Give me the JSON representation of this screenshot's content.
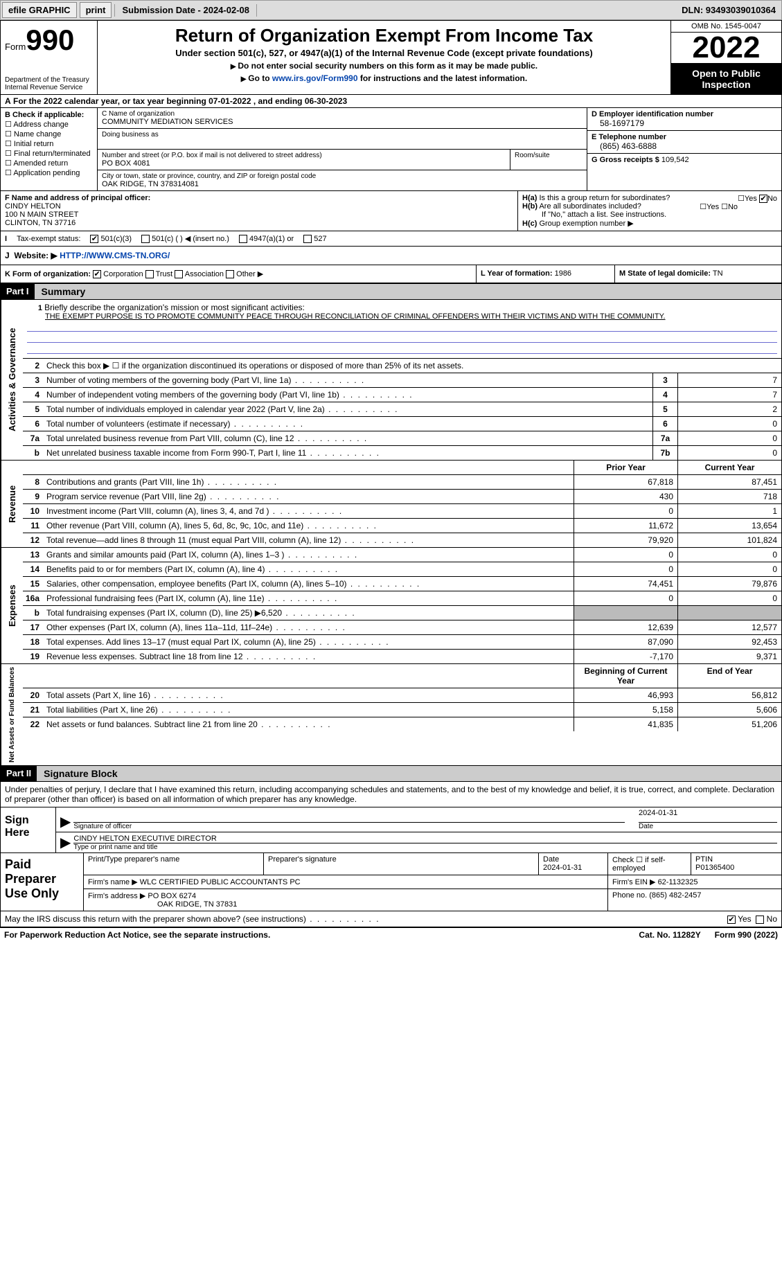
{
  "toolbar": {
    "efile": "efile GRAPHIC",
    "print": "print",
    "submission": "Submission Date - 2024-02-08",
    "dln": "DLN: 93493039010364"
  },
  "header": {
    "form_prefix": "Form",
    "form_number": "990",
    "dept": "Department of the Treasury\nInternal Revenue Service",
    "title": "Return of Organization Exempt From Income Tax",
    "subtitle": "Under section 501(c), 527, or 4947(a)(1) of the Internal Revenue Code (except private foundations)",
    "note1": "Do not enter social security numbers on this form as it may be made public.",
    "note2_pre": "Go to ",
    "note2_link": "www.irs.gov/Form990",
    "note2_post": " for instructions and the latest information.",
    "omb": "OMB No. 1545-0047",
    "year": "2022",
    "inspect": "Open to Public Inspection"
  },
  "calendar": "For the 2022 calendar year, or tax year beginning 07-01-2022   , and ending 06-30-2023",
  "sectionB": {
    "label": "B Check if applicable:",
    "items": [
      "Address change",
      "Name change",
      "Initial return",
      "Final return/terminated",
      "Amended return",
      "Application pending"
    ]
  },
  "sectionC": {
    "name_label": "C Name of organization",
    "name": "COMMUNITY MEDIATION SERVICES",
    "dba_label": "Doing business as",
    "addr_label": "Number and street (or P.O. box if mail is not delivered to street address)",
    "room_label": "Room/suite",
    "addr": "PO BOX 4081",
    "city_label": "City or town, state or province, country, and ZIP or foreign postal code",
    "city": "OAK RIDGE, TN  378314081"
  },
  "sectionD": {
    "label": "D Employer identification number",
    "val": "58-1697179"
  },
  "sectionE": {
    "label": "E Telephone number",
    "val": "(865) 463-6888"
  },
  "sectionG": {
    "label": "G Gross receipts $",
    "val": "109,542"
  },
  "sectionF": {
    "label": "F Name and address of principal officer:",
    "name": "CINDY HELTON",
    "addr1": "100 N MAIN STREET",
    "addr2": "CLINTON, TN  37716"
  },
  "sectionH": {
    "a": "Is this a group return for subordinates?",
    "b": "Are all subordinates included?",
    "note": "If \"No,\" attach a list. See instructions.",
    "c": "Group exemption number ▶"
  },
  "taxexempt": {
    "label": "Tax-exempt status:",
    "c3": "501(c)(3)",
    "c": "501(c) (  ) ◀ (insert no.)",
    "a1": "4947(a)(1) or",
    "s527": "527"
  },
  "sectionJ": {
    "label": "Website: ▶",
    "val": "HTTP://WWW.CMS-TN.ORG/"
  },
  "sectionK": {
    "label": "K Form of organization:",
    "opts": [
      "Corporation",
      "Trust",
      "Association",
      "Other ▶"
    ]
  },
  "sectionL": {
    "label": "L Year of formation:",
    "val": "1986"
  },
  "sectionM": {
    "label": "M State of legal domicile:",
    "val": "TN"
  },
  "part1": {
    "hdr": "Part I",
    "title": "Summary",
    "sideA": "Activities & Governance",
    "sideR": "Revenue",
    "sideE": "Expenses",
    "sideN": "Net Assets or Fund Balances",
    "l1_label": "Briefly describe the organization's mission or most significant activities:",
    "l1_val": "THE EXEMPT PURPOSE IS TO PROMOTE COMMUNITY PEACE THROUGH RECONCILIATION OF CRIMINAL OFFENDERS WITH THEIR VICTIMS AND WITH THE COMMUNITY.",
    "l2": "Check this box ▶ ☐ if the organization discontinued its operations or disposed of more than 25% of its net assets.",
    "lines_ag": [
      {
        "n": "3",
        "t": "Number of voting members of the governing body (Part VI, line 1a)",
        "b": "3",
        "v": "7"
      },
      {
        "n": "4",
        "t": "Number of independent voting members of the governing body (Part VI, line 1b)",
        "b": "4",
        "v": "7"
      },
      {
        "n": "5",
        "t": "Total number of individuals employed in calendar year 2022 (Part V, line 2a)",
        "b": "5",
        "v": "2"
      },
      {
        "n": "6",
        "t": "Total number of volunteers (estimate if necessary)",
        "b": "6",
        "v": "0"
      },
      {
        "n": "7a",
        "t": "Total unrelated business revenue from Part VIII, column (C), line 12",
        "b": "7a",
        "v": "0"
      },
      {
        "n": "b",
        "t": "Net unrelated business taxable income from Form 990-T, Part I, line 11",
        "b": "7b",
        "v": "0"
      }
    ],
    "col_prior": "Prior Year",
    "col_current": "Current Year",
    "lines_rev": [
      {
        "n": "8",
        "t": "Contributions and grants (Part VIII, line 1h)",
        "p": "67,818",
        "c": "87,451"
      },
      {
        "n": "9",
        "t": "Program service revenue (Part VIII, line 2g)",
        "p": "430",
        "c": "718"
      },
      {
        "n": "10",
        "t": "Investment income (Part VIII, column (A), lines 3, 4, and 7d )",
        "p": "0",
        "c": "1"
      },
      {
        "n": "11",
        "t": "Other revenue (Part VIII, column (A), lines 5, 6d, 8c, 9c, 10c, and 11e)",
        "p": "11,672",
        "c": "13,654"
      },
      {
        "n": "12",
        "t": "Total revenue—add lines 8 through 11 (must equal Part VIII, column (A), line 12)",
        "p": "79,920",
        "c": "101,824"
      }
    ],
    "lines_exp": [
      {
        "n": "13",
        "t": "Grants and similar amounts paid (Part IX, column (A), lines 1–3 )",
        "p": "0",
        "c": "0"
      },
      {
        "n": "14",
        "t": "Benefits paid to or for members (Part IX, column (A), line 4)",
        "p": "0",
        "c": "0"
      },
      {
        "n": "15",
        "t": "Salaries, other compensation, employee benefits (Part IX, column (A), lines 5–10)",
        "p": "74,451",
        "c": "79,876"
      },
      {
        "n": "16a",
        "t": "Professional fundraising fees (Part IX, column (A), line 11e)",
        "p": "0",
        "c": "0"
      },
      {
        "n": "b",
        "t": "Total fundraising expenses (Part IX, column (D), line 25) ▶6,520",
        "p": "",
        "c": "",
        "shade": true
      },
      {
        "n": "17",
        "t": "Other expenses (Part IX, column (A), lines 11a–11d, 11f–24e)",
        "p": "12,639",
        "c": "12,577"
      },
      {
        "n": "18",
        "t": "Total expenses. Add lines 13–17 (must equal Part IX, column (A), line 25)",
        "p": "87,090",
        "c": "92,453"
      },
      {
        "n": "19",
        "t": "Revenue less expenses. Subtract line 18 from line 12",
        "p": "-7,170",
        "c": "9,371"
      }
    ],
    "col_beg": "Beginning of Current Year",
    "col_end": "End of Year",
    "lines_net": [
      {
        "n": "20",
        "t": "Total assets (Part X, line 16)",
        "p": "46,993",
        "c": "56,812"
      },
      {
        "n": "21",
        "t": "Total liabilities (Part X, line 26)",
        "p": "5,158",
        "c": "5,606"
      },
      {
        "n": "22",
        "t": "Net assets or fund balances. Subtract line 21 from line 20",
        "p": "41,835",
        "c": "51,206"
      }
    ]
  },
  "part2": {
    "hdr": "Part II",
    "title": "Signature Block",
    "decl": "Under penalties of perjury, I declare that I have examined this return, including accompanying schedules and statements, and to the best of my knowledge and belief, it is true, correct, and complete. Declaration of preparer (other than officer) is based on all information of which preparer has any knowledge.",
    "sign_here": "Sign Here",
    "sig_officer": "Signature of officer",
    "sig_date": "Date",
    "sig_date_val": "2024-01-31",
    "officer_name": "CINDY HELTON  EXECUTIVE DIRECTOR",
    "type_name": "Type or print name and title",
    "prep_label": "Paid Preparer Use Only",
    "prep_hdr": [
      "Print/Type preparer's name",
      "Preparer's signature",
      "Date",
      "Check ☐ if self-employed",
      "PTIN"
    ],
    "prep_date": "2024-01-31",
    "ptin": "P01365400",
    "firm_name_l": "Firm's name    ▶",
    "firm_name": "WLC CERTIFIED PUBLIC ACCOUNTANTS PC",
    "firm_ein_l": "Firm's EIN ▶",
    "firm_ein": "62-1132325",
    "firm_addr_l": "Firm's address ▶",
    "firm_addr": "PO BOX 6274",
    "firm_city": "OAK RIDGE, TN  37831",
    "phone_l": "Phone no.",
    "phone": "(865) 482-2457",
    "discuss": "May the IRS discuss this return with the preparer shown above? (see instructions)",
    "yes": "Yes",
    "no": "No"
  },
  "footer": {
    "pra": "For Paperwork Reduction Act Notice, see the separate instructions.",
    "cat": "Cat. No. 11282Y",
    "form": "Form 990 (2022)"
  }
}
